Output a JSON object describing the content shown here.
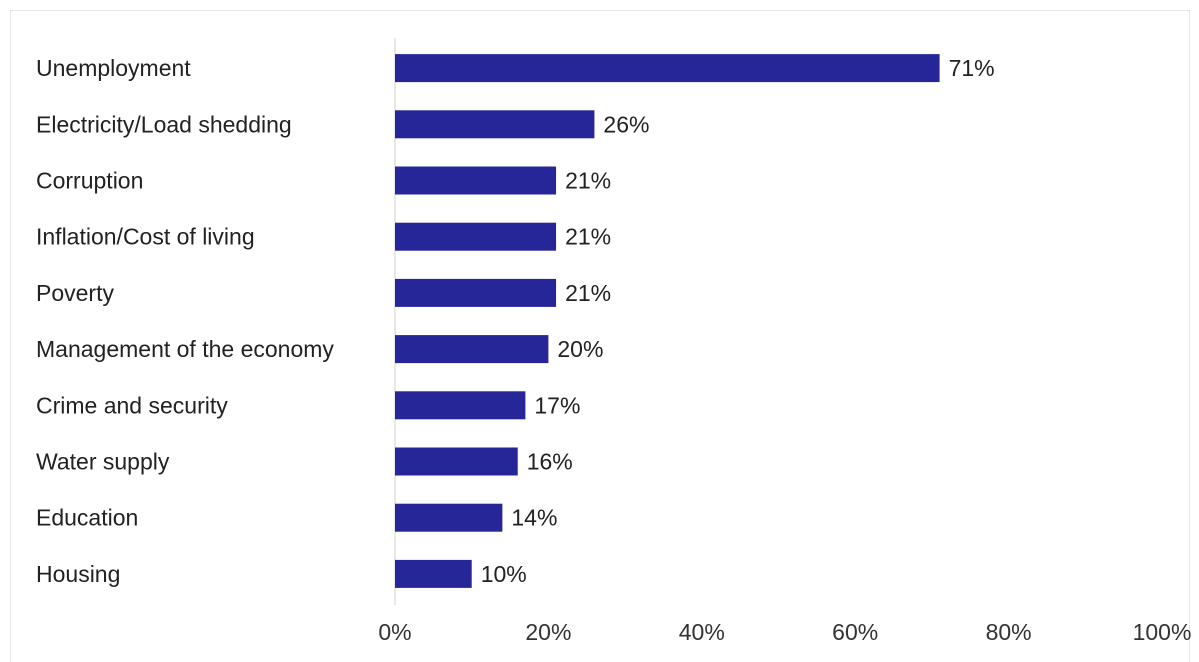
{
  "chart_data": {
    "type": "bar",
    "orientation": "horizontal",
    "categories": [
      "Unemployment",
      "Electricity/Load shedding",
      "Corruption",
      "Inflation/Cost of living",
      "Poverty",
      "Management of the economy",
      "Crime and security",
      "Water supply",
      "Education",
      "Housing"
    ],
    "values": [
      71,
      26,
      21,
      21,
      21,
      20,
      17,
      16,
      14,
      10
    ],
    "value_labels": [
      "71%",
      "26%",
      "21%",
      "21%",
      "21%",
      "20%",
      "17%",
      "16%",
      "14%",
      "10%"
    ],
    "x_ticks": [
      "0%",
      "20%",
      "40%",
      "60%",
      "80%",
      "100%"
    ],
    "xlim": [
      0,
      100
    ],
    "title": "",
    "xlabel": "",
    "ylabel": "",
    "grid": false,
    "legend": "none",
    "bar_color": "#262699"
  }
}
